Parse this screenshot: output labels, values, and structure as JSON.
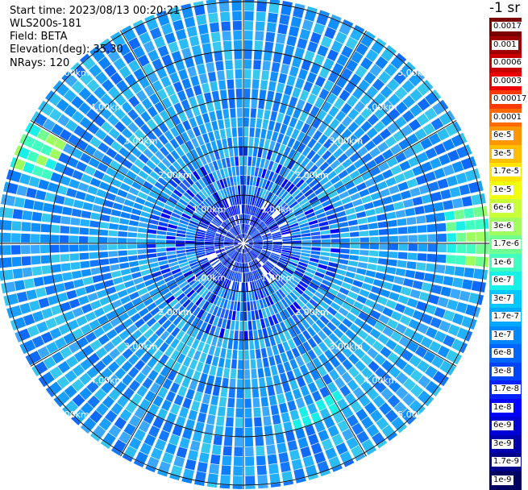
{
  "header": {
    "start_time": "Start time: 2023/08/13 00:20:21",
    "instrument": "WLS200s-181",
    "field": "Field: BETA",
    "elevation": "Elevation(deg): 35.30",
    "nrays": "NRays: 120"
  },
  "unit_label": "-1 sr",
  "colorbar": {
    "labels": [
      "0.0017",
      "0.001",
      "0.0006",
      "0.0003",
      "0.00017",
      "0.0001",
      "6e-5",
      "3e-5",
      "1.7e-5",
      "1e-5",
      "6e-6",
      "3e-6",
      "1.7e-6",
      "1e-6",
      "6e-7",
      "3e-7",
      "1.7e-7",
      "1e-7",
      "6e-8",
      "3e-8",
      "1.7e-8",
      "1e-8",
      "6e-9",
      "3e-9",
      "1.7e-9",
      "1e-9"
    ],
    "colors": [
      "#7a0000",
      "#a00000",
      "#c80000",
      "#ee0000",
      "#ff3a00",
      "#ff6a00",
      "#ff9800",
      "#ffbf00",
      "#ffe400",
      "#f0ff10",
      "#c8ff38",
      "#a0ff60",
      "#70ff90",
      "#40ffc0",
      "#18f0e8",
      "#00c8ff",
      "#00a8ff",
      "#0088ff",
      "#0066ff",
      "#0044ff",
      "#0022ff",
      "#0000ff",
      "#0000d8",
      "#0000b0",
      "#000088",
      "#000060"
    ]
  },
  "chart_data": {
    "type": "polar-ppi",
    "field": "BETA",
    "elevation_deg": 35.3,
    "nrays": 120,
    "range_rings_km": [
      1,
      2,
      3,
      4,
      5
    ],
    "ring_labels": [
      "1.00km",
      "2.00km",
      "3.00km",
      "4.00km",
      "5.00km"
    ],
    "max_range_km": 5.0,
    "spokes_deg": [
      0,
      30,
      60,
      90,
      120,
      150,
      180,
      210,
      240,
      270,
      300,
      330
    ],
    "colorscale": "logarithmic",
    "dominant_values": "1e-7 to 6e-8 (light blue); near-range ~1e-8; edge patches ~1e-6 (green/yellow)"
  }
}
